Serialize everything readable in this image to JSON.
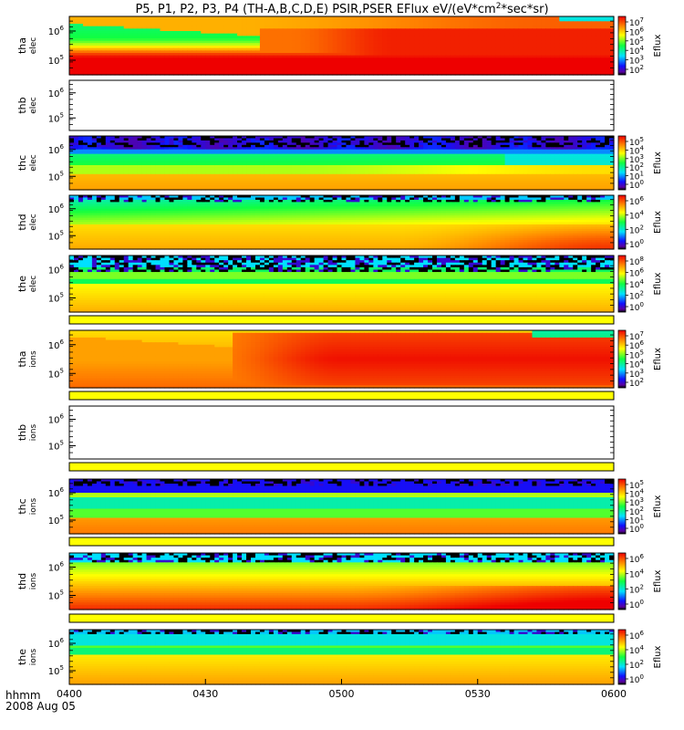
{
  "title": {
    "main": "P5, P1, P2, P3, P4 (TH-A,B,C,D,E) PSIR,PSER EFlux eV/(eV*cm",
    "sup": "2",
    "tail": "*sec*sr)"
  },
  "x_axis": {
    "label_line1": "hhmm",
    "label_line2": "2008 Aug 05",
    "ticks": [
      "0400",
      "0430",
      "0500",
      "0530",
      "0600"
    ],
    "range_minutes": [
      0,
      120
    ],
    "tick_minutes": [
      0,
      30,
      60,
      90,
      120
    ]
  },
  "colorbar_label": "Eflux",
  "chart_data": {
    "type": "heatmap",
    "time_range": [
      "0400",
      "0600"
    ],
    "panels": [
      {
        "id": "tha-elec",
        "probe": "tha",
        "species": "elec",
        "y_ticks": [
          {
            "base": "10",
            "exp": "6"
          },
          {
            "base": "10",
            "exp": "5"
          }
        ],
        "colorbar": true,
        "cbar_exps": [
          "7",
          "6",
          "5",
          "4",
          "3",
          "2"
        ],
        "empty": false,
        "pattern": "tha_elec"
      },
      {
        "id": "thb-elec",
        "probe": "thb",
        "species": "elec",
        "y_ticks": [
          {
            "base": "10",
            "exp": "6"
          },
          {
            "base": "10",
            "exp": "5"
          }
        ],
        "colorbar": false,
        "cbar_exps": [],
        "empty": true,
        "pattern": "empty"
      },
      {
        "id": "thc-elec",
        "probe": "thc",
        "species": "elec",
        "y_ticks": [
          {
            "base": "10",
            "exp": "6"
          },
          {
            "base": "10",
            "exp": "5"
          }
        ],
        "colorbar": true,
        "cbar_exps": [
          "5",
          "4",
          "3",
          "2",
          "1",
          "0"
        ],
        "empty": false,
        "pattern": "thc_elec"
      },
      {
        "id": "thd-elec",
        "probe": "thd",
        "species": "elec",
        "y_ticks": [
          {
            "base": "10",
            "exp": "6"
          },
          {
            "base": "10",
            "exp": "5"
          }
        ],
        "colorbar": true,
        "cbar_exps": [
          "6",
          "4",
          "2",
          "0"
        ],
        "empty": false,
        "pattern": "thd_elec"
      },
      {
        "id": "the-elec",
        "probe": "the",
        "species": "elec",
        "y_ticks": [
          {
            "base": "10",
            "exp": "6"
          },
          {
            "base": "10",
            "exp": "5"
          }
        ],
        "colorbar": true,
        "cbar_exps": [
          "8",
          "6",
          "4",
          "2",
          "0"
        ],
        "empty": false,
        "pattern": "the_elec"
      },
      {
        "id": "tha-ions",
        "probe": "tha",
        "species": "ions",
        "y_ticks": [
          {
            "base": "10",
            "exp": "6"
          },
          {
            "base": "10",
            "exp": "5"
          }
        ],
        "colorbar": true,
        "cbar_exps": [
          "7",
          "6",
          "5",
          "4",
          "3",
          "2"
        ],
        "empty": false,
        "pattern": "tha_ions"
      },
      {
        "id": "thb-ions",
        "probe": "thb",
        "species": "ions",
        "y_ticks": [
          {
            "base": "10",
            "exp": "6"
          },
          {
            "base": "10",
            "exp": "5"
          }
        ],
        "colorbar": false,
        "cbar_exps": [],
        "empty": true,
        "pattern": "empty"
      },
      {
        "id": "thc-ions",
        "probe": "thc",
        "species": "ions",
        "y_ticks": [
          {
            "base": "10",
            "exp": "6"
          },
          {
            "base": "10",
            "exp": "5"
          }
        ],
        "colorbar": true,
        "cbar_exps": [
          "5",
          "4",
          "3",
          "2",
          "1",
          "0"
        ],
        "empty": false,
        "pattern": "thc_ions"
      },
      {
        "id": "thd-ions",
        "probe": "thd",
        "species": "ions",
        "y_ticks": [
          {
            "base": "10",
            "exp": "6"
          },
          {
            "base": "10",
            "exp": "5"
          }
        ],
        "colorbar": true,
        "cbar_exps": [
          "6",
          "4",
          "2",
          "0"
        ],
        "empty": false,
        "pattern": "thd_ions"
      },
      {
        "id": "the-ions",
        "probe": "the",
        "species": "ions",
        "y_ticks": [
          {
            "base": "10",
            "exp": "6"
          },
          {
            "base": "10",
            "exp": "5"
          }
        ],
        "colorbar": true,
        "cbar_exps": [
          "6",
          "4",
          "2",
          "0"
        ],
        "empty": false,
        "pattern": "the_ions"
      }
    ],
    "strip_color": "#ffff00"
  }
}
